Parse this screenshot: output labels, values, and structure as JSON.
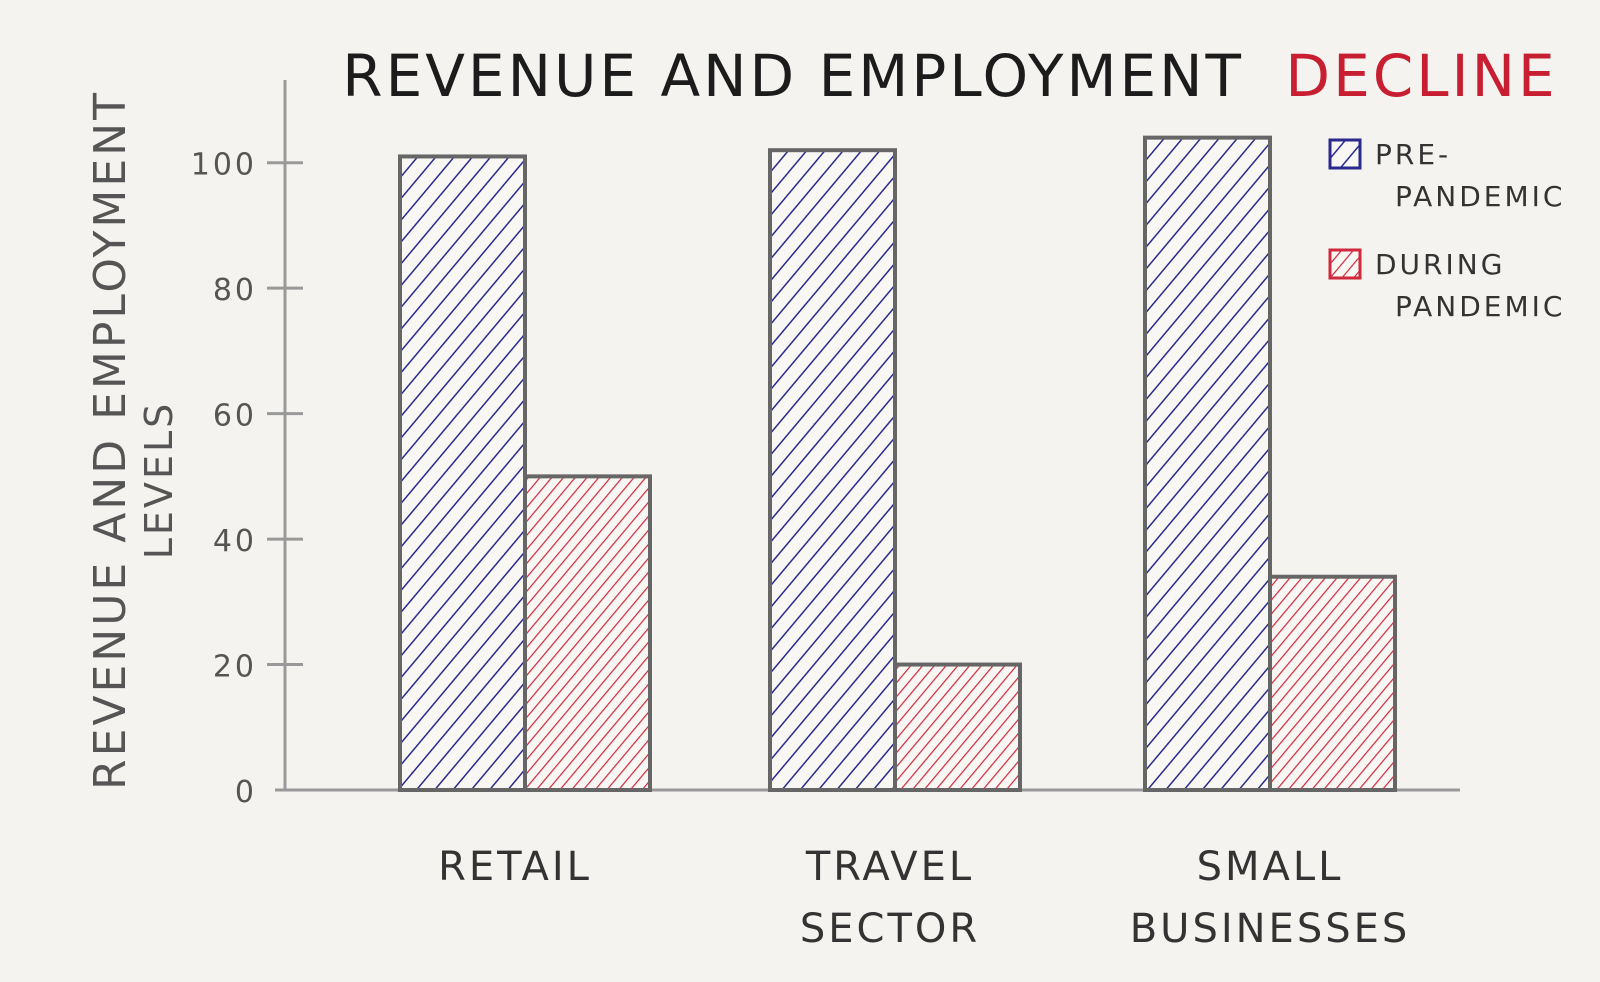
{
  "chart_data": {
    "type": "bar",
    "title_main": "REVENUE AND EMPLOYMENT",
    "title_accent": "DECLINE",
    "ylabel_line1": "REVENUE AND EMPLOYMENT",
    "ylabel_line2": "LEVELS",
    "xlabel": "",
    "categories": [
      [
        "RETAIL"
      ],
      [
        "TRAVEL",
        "SECTOR"
      ],
      [
        "SMALL",
        "BUSINESSES"
      ]
    ],
    "series": [
      {
        "name_lines": [
          "PRE-",
          "PANDEMIC"
        ],
        "color": "#2a2a8c",
        "values": [
          101,
          102,
          104
        ]
      },
      {
        "name_lines": [
          "DURING",
          "PANDEMIC"
        ],
        "color": "#d0283c",
        "values": [
          50,
          20,
          34
        ]
      }
    ],
    "yticks": [
      0,
      20,
      40,
      60,
      80,
      100
    ],
    "ylim": [
      0,
      110
    ],
    "grid": false,
    "legend": "top-right",
    "colors": {
      "title": "#1c1c1c",
      "accent": "#c81e32",
      "outline": "#666666",
      "axis": "#999999"
    }
  }
}
